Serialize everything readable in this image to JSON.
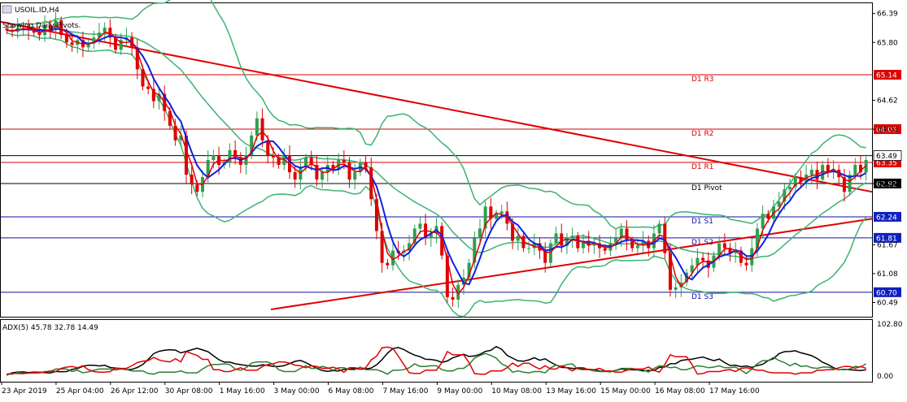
{
  "window": {
    "symbol_title": "USOIL.ID,H4",
    "subtitle": "Showing Daily Pivots."
  },
  "indicator": {
    "title": "ADX(5) 45.78 32.78 14.49",
    "axis_top": "102.80",
    "axis_bottom": "0.00"
  },
  "colors": {
    "bull": "#2e9f50",
    "bear": "#e00000",
    "ma_blue": "#1020e0",
    "ma_red": "#e00000",
    "bands": "#3cb371",
    "trend": "#e00000",
    "resistance": "#d40000",
    "support": "#1010a0",
    "pivot": "#000000",
    "adx_main": "#000000",
    "adx_plus": "#2e7d32",
    "adx_minus": "#e00000"
  },
  "chart_data": {
    "type": "candlestick",
    "x_axis_labels": [
      "23 Apr 2019",
      "25 Apr 04:00",
      "26 Apr 12:00",
      "30 Apr 08:00",
      "1 May 16:00",
      "3 May 00:00",
      "6 May 08:00",
      "7 May 16:00",
      "9 May 00:00",
      "10 May 08:00",
      "13 May 16:00",
      "15 May 00:00",
      "16 May 08:00",
      "17 May 16:00"
    ],
    "y_axis_ticks": [
      66.39,
      65.8,
      64.62,
      64.03,
      62.92,
      61.67,
      61.08,
      60.49
    ],
    "ylim": [
      60.2,
      66.6
    ],
    "levels": [
      {
        "name": "D1 R3",
        "value": 65.14,
        "kind": "resistance"
      },
      {
        "name": "D1 R2",
        "value": 64.03,
        "kind": "resistance"
      },
      {
        "name": "D1 R1",
        "value": 63.35,
        "kind": "resistance"
      },
      {
        "name": "D1 Pivot",
        "value": 62.92,
        "kind": "pivot"
      },
      {
        "name": "D1 S1",
        "value": 62.24,
        "kind": "support"
      },
      {
        "name": "D1 S2",
        "value": 61.81,
        "kind": "support"
      },
      {
        "name": "D1 S3",
        "value": 60.7,
        "kind": "support"
      }
    ],
    "price_tags": [
      {
        "value": 63.49,
        "label": "63.49",
        "style": "black"
      },
      {
        "value": 63.35,
        "label": "63.35",
        "style": "red"
      }
    ],
    "closes": [
      66.05,
      66.02,
      66.1,
      66.1,
      66.05,
      66.0,
      65.95,
      66.15,
      66.05,
      66.25,
      65.95,
      65.8,
      65.75,
      65.85,
      65.7,
      65.78,
      65.9,
      66.0,
      66.1,
      65.9,
      65.65,
      65.85,
      65.9,
      65.7,
      65.25,
      64.9,
      64.85,
      64.6,
      64.75,
      64.4,
      64.1,
      63.8,
      63.9,
      63.1,
      62.9,
      62.75,
      63.05,
      63.4,
      63.5,
      63.3,
      63.35,
      63.6,
      63.45,
      63.3,
      63.5,
      63.9,
      64.25,
      63.8,
      63.5,
      63.45,
      63.3,
      63.5,
      63.15,
      63.0,
      63.25,
      63.45,
      63.3,
      63.0,
      63.15,
      63.3,
      63.2,
      63.4,
      63.35,
      63.0,
      63.15,
      63.35,
      63.25,
      62.6,
      61.95,
      61.3,
      61.25,
      61.55,
      61.5,
      61.55,
      61.7,
      62.0,
      62.1,
      61.8,
      61.9,
      62.05,
      61.45,
      60.6,
      60.55,
      60.85,
      61.0,
      61.3,
      61.8,
      62.0,
      62.45,
      62.2,
      62.3,
      62.35,
      62.1,
      61.75,
      61.85,
      61.6,
      61.6,
      61.7,
      61.55,
      61.3,
      61.7,
      61.9,
      61.65,
      61.8,
      61.85,
      61.6,
      61.75,
      61.65,
      61.7,
      61.6,
      61.55,
      61.7,
      61.8,
      62.0,
      61.75,
      61.6,
      61.65,
      61.75,
      61.6,
      61.9,
      62.1,
      61.5,
      60.75,
      60.8,
      60.9,
      61.1,
      61.25,
      61.4,
      61.35,
      61.2,
      61.45,
      61.7,
      61.6,
      61.5,
      61.55,
      61.3,
      61.25,
      61.6,
      62.0,
      62.3,
      62.2,
      62.45,
      62.55,
      62.8,
      62.85,
      63.05,
      62.95,
      63.1,
      63.2,
      63.0,
      63.3,
      63.15,
      63.2,
      63.05,
      62.75,
      63.1,
      63.3,
      63.15,
      63.4
    ],
    "opens": [
      66.08,
      66.05,
      66.02,
      66.1,
      66.1,
      66.05,
      66.0,
      65.95,
      66.15,
      66.05,
      66.25,
      65.95,
      65.8,
      65.75,
      65.85,
      65.7,
      65.78,
      65.9,
      66.0,
      66.1,
      65.9,
      65.65,
      65.85,
      65.9,
      65.7,
      65.25,
      64.9,
      64.85,
      64.6,
      64.75,
      64.4,
      64.1,
      63.8,
      63.9,
      63.1,
      62.9,
      62.75,
      63.05,
      63.4,
      63.5,
      63.3,
      63.35,
      63.6,
      63.45,
      63.3,
      63.5,
      63.9,
      64.25,
      63.8,
      63.5,
      63.45,
      63.3,
      63.5,
      63.15,
      63.0,
      63.25,
      63.45,
      63.3,
      63.0,
      63.15,
      63.3,
      63.2,
      63.4,
      63.35,
      63.0,
      63.15,
      63.35,
      63.25,
      62.6,
      61.95,
      61.3,
      61.25,
      61.55,
      61.5,
      61.55,
      61.7,
      62.0,
      62.1,
      61.8,
      61.9,
      62.05,
      61.45,
      60.6,
      60.55,
      60.85,
      61.0,
      61.3,
      61.8,
      62.0,
      62.45,
      62.2,
      62.3,
      62.35,
      62.1,
      61.75,
      61.85,
      61.6,
      61.6,
      61.7,
      61.55,
      61.3,
      61.7,
      61.9,
      61.65,
      61.8,
      61.85,
      61.6,
      61.75,
      61.65,
      61.7,
      61.6,
      61.55,
      61.7,
      61.8,
      62.0,
      61.75,
      61.6,
      61.65,
      61.75,
      61.6,
      61.9,
      62.1,
      61.5,
      60.75,
      60.8,
      60.9,
      61.1,
      61.25,
      61.4,
      61.35,
      61.2,
      61.45,
      61.7,
      61.6,
      61.5,
      61.55,
      61.3,
      61.25,
      61.6,
      62.0,
      62.3,
      62.2,
      62.45,
      62.55,
      62.8,
      62.85,
      63.05,
      62.95,
      63.1,
      63.2,
      63.0,
      63.3,
      63.15,
      63.2,
      63.05,
      62.75,
      63.1,
      63.3,
      63.15
    ],
    "trendlines": [
      {
        "name": "upper-trendline",
        "x_frac": [
          0.0,
          1.0
        ],
        "y": [
          66.22,
          62.75
        ]
      },
      {
        "name": "lower-trendline",
        "x_frac": [
          0.31,
          1.0
        ],
        "y": [
          60.35,
          62.2
        ]
      }
    ],
    "indicator_ylim": [
      0,
      102.8
    ]
  }
}
